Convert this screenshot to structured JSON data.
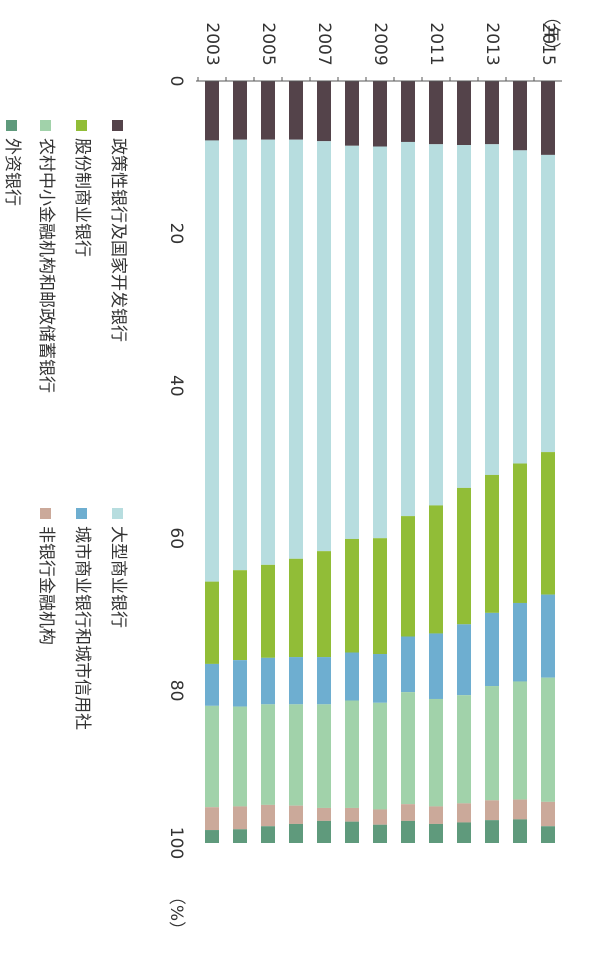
{
  "chart_data": {
    "type": "bar",
    "stacked": true,
    "orientation": "horizontal",
    "units": {
      "year": "（年）",
      "percent": "（%）"
    },
    "categories": [
      "2003",
      "2004",
      "2005",
      "2006",
      "2007",
      "2008",
      "2009",
      "2010",
      "2011",
      "2012",
      "2013",
      "2014",
      "2015"
    ],
    "year_tick_labels": [
      "2003",
      "2005",
      "2007",
      "2009",
      "2011",
      "2013",
      "2015"
    ],
    "xlim": [
      0,
      100
    ],
    "x_ticks": [
      0,
      20,
      40,
      60,
      80,
      100
    ],
    "x_tick_labels": [
      "0",
      "20",
      "40",
      "60",
      "80",
      "100"
    ],
    "series": [
      {
        "name": "政策性银行及国家开发银行",
        "color": "#54434a",
        "values": [
          7.8,
          7.7,
          7.7,
          7.7,
          7.9,
          8.5,
          8.6,
          8.0,
          8.3,
          8.4,
          8.3,
          9.1,
          9.7
        ]
      },
      {
        "name": "大型商业银行",
        "color": "#b7dddf",
        "values": [
          57.9,
          56.5,
          55.8,
          55.0,
          53.8,
          51.6,
          51.4,
          49.1,
          47.4,
          45.0,
          43.4,
          41.1,
          39.0
        ]
      },
      {
        "name": "股份制商业银行",
        "color": "#91bd37",
        "values": [
          10.8,
          11.8,
          12.2,
          12.9,
          13.9,
          14.9,
          15.2,
          15.8,
          16.8,
          17.9,
          18.1,
          18.3,
          18.7
        ]
      },
      {
        "name": "城市商业银行和城市信用社",
        "color": "#6eaed0",
        "values": [
          5.5,
          6.1,
          6.1,
          6.2,
          6.2,
          6.3,
          6.4,
          7.3,
          8.6,
          9.3,
          9.6,
          10.3,
          10.9
        ]
      },
      {
        "name": "农村中小金融机构和邮政储蓄银行",
        "color": "#a1d2aa",
        "values": [
          13.3,
          13.1,
          13.2,
          13.3,
          13.6,
          14.1,
          14.0,
          14.7,
          14.1,
          14.2,
          15.0,
          15.5,
          16.3
        ]
      },
      {
        "name": "非银行金融机构",
        "color": "#cba99a",
        "values": [
          3.0,
          3.0,
          2.8,
          2.4,
          1.7,
          1.8,
          2.0,
          2.2,
          2.3,
          2.5,
          2.6,
          2.6,
          3.2
        ]
      },
      {
        "name": "外资银行",
        "color": "#5f9a7c",
        "values": [
          1.7,
          1.8,
          2.2,
          2.5,
          2.9,
          2.8,
          2.4,
          2.9,
          2.5,
          2.7,
          3.0,
          3.1,
          2.2
        ]
      }
    ],
    "legend_placement": "bottom",
    "grid": false
  }
}
